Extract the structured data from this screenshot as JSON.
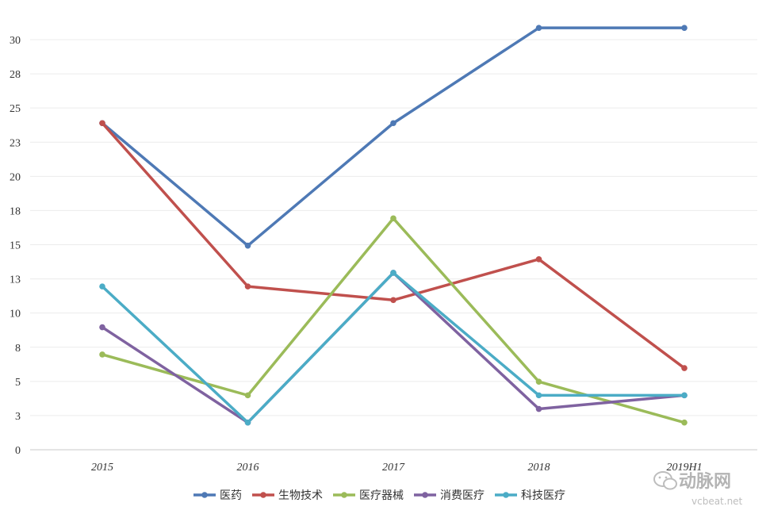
{
  "chart_data": {
    "type": "line",
    "title": "",
    "xlabel": "",
    "ylabel": "",
    "categories": [
      "2015",
      "2016",
      "2017",
      "2018",
      "2019H1"
    ],
    "y_ticks": [
      "0",
      "3",
      "5",
      "8",
      "10",
      "13",
      "15",
      "18",
      "20",
      "23",
      "25",
      "28",
      "30"
    ],
    "ylim": [
      0,
      32
    ],
    "grid": "horizontal",
    "legend_position": "bottom",
    "series": [
      {
        "name": "医药",
        "color": "#4e79b5",
        "values": [
          24,
          15,
          24,
          31,
          31
        ]
      },
      {
        "name": "生物技术",
        "color": "#c0504d",
        "values": [
          24,
          12,
          11,
          14,
          6
        ]
      },
      {
        "name": "医疗器械",
        "color": "#9bbb59",
        "values": [
          7,
          4,
          17,
          5,
          2
        ]
      },
      {
        "name": "消费医疗",
        "color": "#7f62a0",
        "values": [
          9,
          2,
          13,
          3,
          4
        ]
      },
      {
        "name": "科技医疗",
        "color": "#4bacc6",
        "values": [
          12,
          2,
          13,
          4,
          4
        ]
      }
    ]
  },
  "watermark": {
    "brand": "动脉网",
    "site": "vcbeat.net"
  }
}
